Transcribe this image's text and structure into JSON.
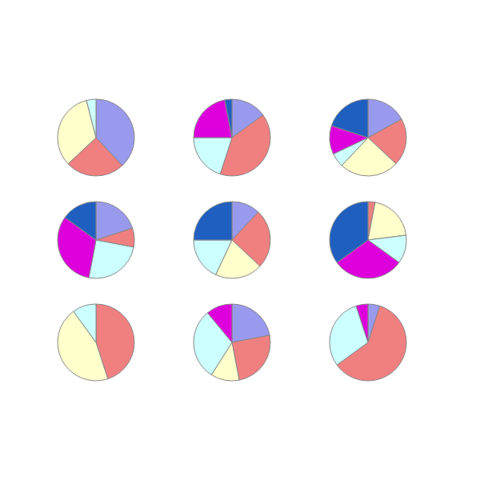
{
  "chart_data": [
    {
      "type": "pie",
      "categories": [
        null,
        null,
        null,
        null
      ],
      "values": [
        38,
        25,
        33,
        4
      ],
      "colors": [
        "#9999ee",
        "#f08080",
        "#ffffcc",
        "#ccffff"
      ]
    },
    {
      "type": "pie",
      "categories": [
        null,
        null,
        null,
        null,
        null
      ],
      "values": [
        15,
        40,
        20,
        22,
        3
      ],
      "colors": [
        "#9999ee",
        "#f08080",
        "#ccffff",
        "#dd00dd",
        "#1f5fc0"
      ]
    },
    {
      "type": "pie",
      "categories": [
        null,
        null,
        null,
        null,
        null,
        null
      ],
      "values": [
        17,
        20,
        25,
        6,
        12,
        20
      ],
      "colors": [
        "#9999ee",
        "#f08080",
        "#ffffcc",
        "#ccffff",
        "#dd00dd",
        "#1f5fc0"
      ]
    },
    {
      "type": "pie",
      "categories": [
        null,
        null,
        null,
        null,
        null
      ],
      "values": [
        20,
        8,
        25,
        32,
        15
      ],
      "colors": [
        "#9999ee",
        "#f08080",
        "#ccffff",
        "#dd00dd",
        "#1f5fc0"
      ]
    },
    {
      "type": "pie",
      "categories": [
        null,
        null,
        null,
        null,
        null
      ],
      "values": [
        12,
        25,
        20,
        18,
        25
      ],
      "colors": [
        "#9999ee",
        "#f08080",
        "#ffffcc",
        "#ccffff",
        "#1f5fc0"
      ]
    },
    {
      "type": "pie",
      "categories": [
        null,
        null,
        null,
        null,
        null
      ],
      "values": [
        3,
        20,
        12,
        30,
        35
      ],
      "colors": [
        "#f08080",
        "#ffffcc",
        "#ccffff",
        "#dd00dd",
        "#1f5fc0"
      ]
    },
    {
      "type": "pie",
      "categories": [
        null,
        null,
        null
      ],
      "values": [
        45,
        45,
        10
      ],
      "colors": [
        "#f08080",
        "#ffffcc",
        "#ccffff"
      ]
    },
    {
      "type": "pie",
      "categories": [
        null,
        null,
        null,
        null,
        null
      ],
      "values": [
        22,
        25,
        12,
        30,
        11
      ],
      "colors": [
        "#9999ee",
        "#f08080",
        "#ffffcc",
        "#ccffff",
        "#dd00dd"
      ]
    },
    {
      "type": "pie",
      "categories": [
        null,
        null,
        null,
        null
      ],
      "values": [
        5,
        60,
        30,
        5
      ],
      "colors": [
        "#9999ee",
        "#f08080",
        "#ccffff",
        "#dd00dd"
      ]
    }
  ]
}
